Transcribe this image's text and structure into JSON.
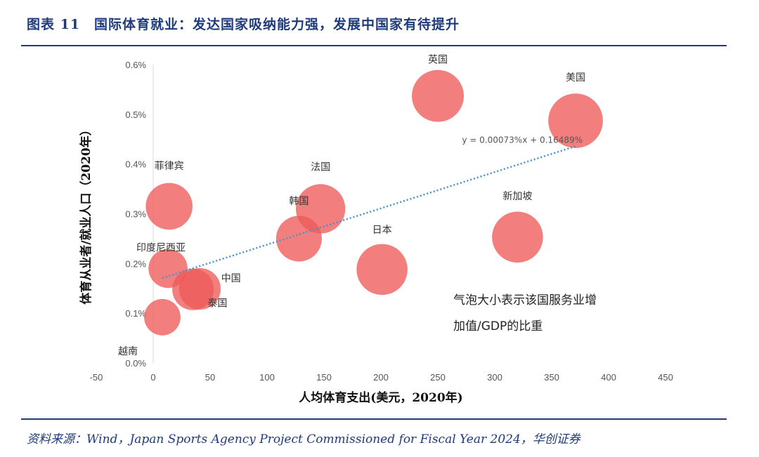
{
  "header": {
    "title": "图表 11　国际体育就业：发达国家吸纳能力强，发展中国家有待提升"
  },
  "footer": {
    "source": "资料来源：Wind，Japan Sports Agency Project Commissioned for Fiscal Year 2024，华创证券"
  },
  "chart_data": {
    "type": "bubble",
    "xlabel": "人均体育支出(美元，2020年)",
    "ylabel": "体育从业者/就业人口（2020年）",
    "xlim": [
      -50,
      450
    ],
    "ylim": [
      0,
      0.6
    ],
    "x_ticks": [
      -50,
      0,
      50,
      100,
      150,
      200,
      250,
      300,
      350,
      400,
      450
    ],
    "y_ticks": [
      "0.0%",
      "0.1%",
      "0.2%",
      "0.3%",
      "0.4%",
      "0.5%",
      "0.6%"
    ],
    "y_tick_values": [
      0,
      0.1,
      0.2,
      0.3,
      0.4,
      0.5,
      0.6
    ],
    "bubble_color": "#ee5a5a",
    "trend_color": "#4a8fd0",
    "points": [
      {
        "name": "英国",
        "x": 250,
        "y": 0.537,
        "size": 1.0
      },
      {
        "name": "美国",
        "x": 371,
        "y": 0.487,
        "size": 1.05
      },
      {
        "name": "菲律宾",
        "x": 14,
        "y": 0.315,
        "size": 0.9
      },
      {
        "name": "法国",
        "x": 147,
        "y": 0.31,
        "size": 0.95
      },
      {
        "name": "韩国",
        "x": 128,
        "y": 0.25,
        "size": 0.88
      },
      {
        "name": "新加坡",
        "x": 320,
        "y": 0.253,
        "size": 0.98
      },
      {
        "name": "日本",
        "x": 201,
        "y": 0.188,
        "size": 0.98
      },
      {
        "name": "印度尼西亚",
        "x": 13,
        "y": 0.19,
        "size": 0.75
      },
      {
        "name": "中国",
        "x": 35,
        "y": 0.148,
        "size": 0.8
      },
      {
        "name": "泰国",
        "x": 41,
        "y": 0.149,
        "size": 0.8
      },
      {
        "name": "越南",
        "x": 8,
        "y": 0.092,
        "size": 0.7
      }
    ],
    "trendline": {
      "label": "y = 0.00073%x + 0.16489%",
      "x_start": 8,
      "x_end": 371,
      "slope": 0.00073,
      "intercept": 0.16489
    },
    "annotation": {
      "line1": "气泡大小表示该国服务业增",
      "line2": "加值/GDP的比重"
    }
  }
}
